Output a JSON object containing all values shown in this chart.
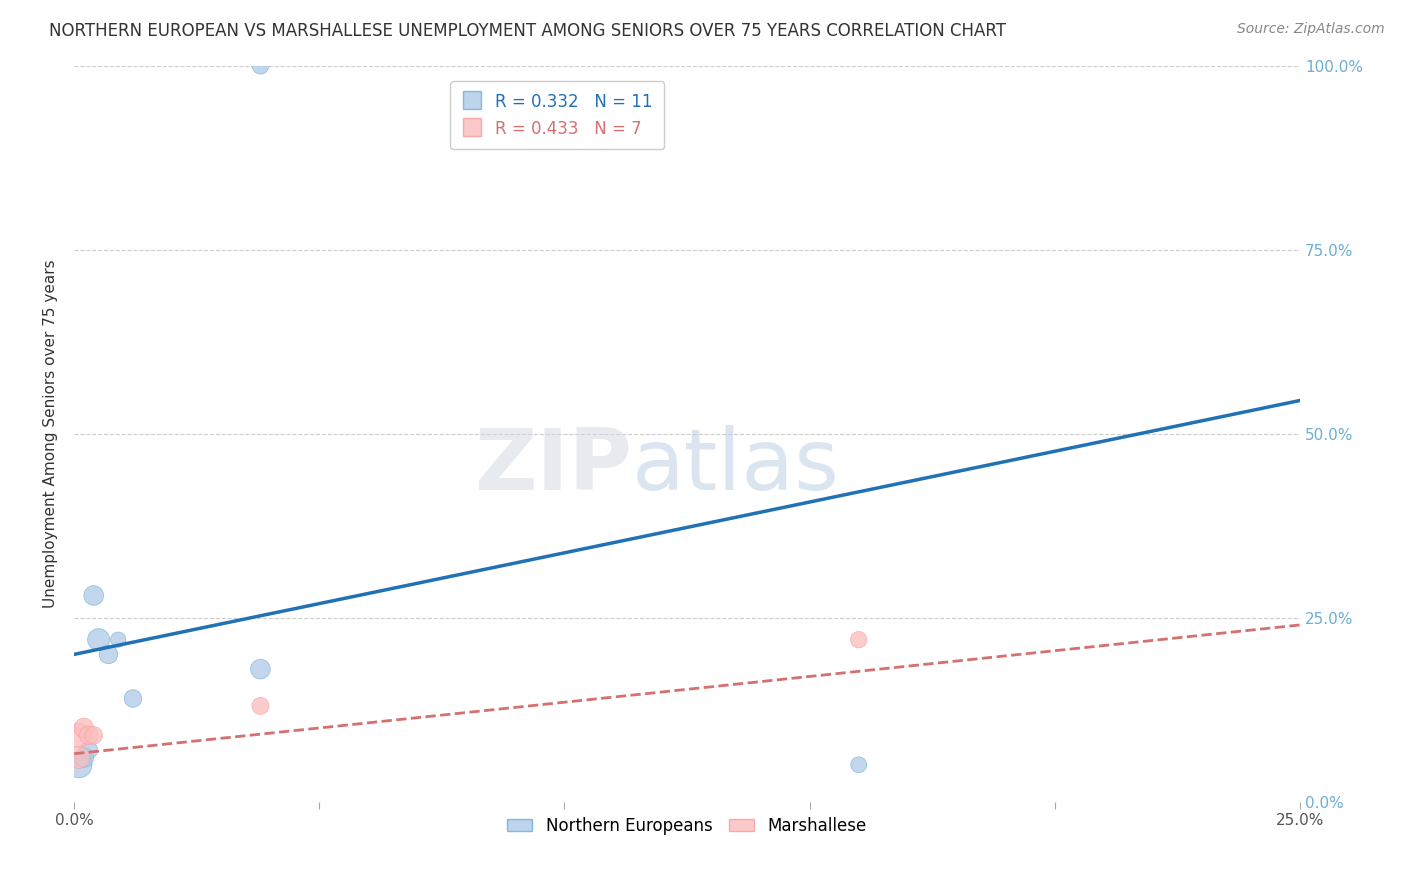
{
  "title": "NORTHERN EUROPEAN VS MARSHALLESE UNEMPLOYMENT AMONG SENIORS OVER 75 YEARS CORRELATION CHART",
  "source": "Source: ZipAtlas.com",
  "ylabel": "Unemployment Among Seniors over 75 years",
  "xlim": [
    0.0,
    0.25
  ],
  "ylim": [
    0.0,
    1.0
  ],
  "xtick_labels": [
    "0.0%",
    "",
    "",
    "",
    "",
    "25.0%"
  ],
  "xtick_vals": [
    0.0,
    0.05,
    0.1,
    0.15,
    0.2,
    0.25
  ],
  "ytick_vals_left": [
    0.0,
    0.25,
    0.5,
    0.75,
    1.0
  ],
  "ytick_labels_right": [
    "0.0%",
    "25.0%",
    "50.0%",
    "75.0%",
    "100.0%"
  ],
  "ytick_vals_right": [
    0.0,
    0.25,
    0.5,
    0.75,
    1.0
  ],
  "ne_points_x": [
    0.001,
    0.002,
    0.003,
    0.004,
    0.005,
    0.007,
    0.009,
    0.012,
    0.038,
    0.038,
    0.16
  ],
  "ne_points_y": [
    0.05,
    0.06,
    0.07,
    0.28,
    0.22,
    0.2,
    0.22,
    0.14,
    0.18,
    1.0,
    0.05
  ],
  "ne_sizes": [
    350,
    200,
    160,
    200,
    250,
    180,
    120,
    160,
    200,
    150,
    130
  ],
  "ma_points_x": [
    0.001,
    0.001,
    0.002,
    0.003,
    0.004,
    0.038,
    0.16
  ],
  "ma_points_y": [
    0.09,
    0.06,
    0.1,
    0.09,
    0.09,
    0.13,
    0.22
  ],
  "ma_sizes": [
    300,
    250,
    200,
    180,
    160,
    150,
    140
  ],
  "ne_color": "#aec9e8",
  "ne_edge_color": "#6baed6",
  "ne_line_color": "#2171b5",
  "ma_color": "#fbbcbc",
  "ma_edge_color": "#fb9a99",
  "ma_line_color": "#d4706e",
  "ne_R": "0.332",
  "ne_N": "11",
  "ma_R": "0.433",
  "ma_N": "7",
  "ne_line_x": [
    0.0,
    0.25
  ],
  "ne_line_y": [
    0.2,
    0.545
  ],
  "ma_line_x": [
    0.0,
    0.25
  ],
  "ma_line_y": [
    0.065,
    0.24
  ],
  "watermark_zip": "ZIP",
  "watermark_atlas": "atlas",
  "background_color": "#ffffff",
  "grid_color": "#cccccc"
}
